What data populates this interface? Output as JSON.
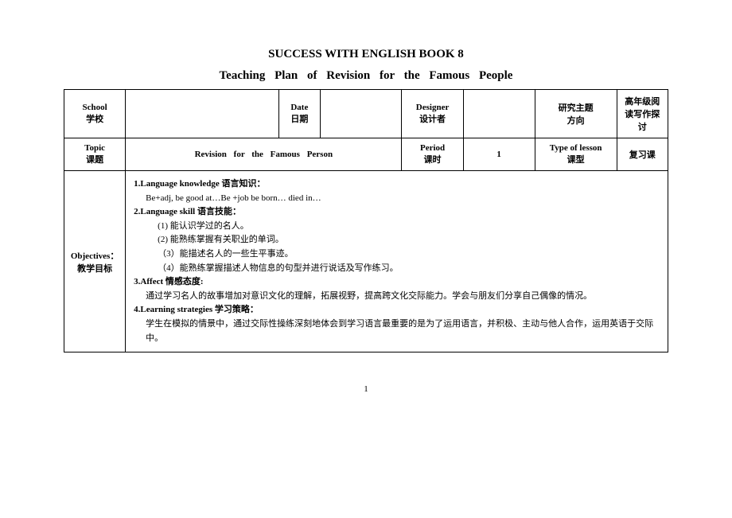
{
  "title1": "SUCCESS WITH ENGLISH BOOK 8",
  "title2": "Teaching   Plan   of   Revision   for   the   Famous   People",
  "row1": {
    "school_en": "School",
    "school_zh": "学校",
    "date_en": "Date",
    "date_zh": "日期",
    "designer_en": "Designer",
    "designer_zh": "设计者",
    "research_zh1": "研究主题",
    "research_zh2": "方向",
    "grade_zh1": "高年级阅",
    "grade_zh2": "读写作探",
    "grade_zh3": "讨"
  },
  "row2": {
    "topic_en": "Topic",
    "topic_zh": "课题",
    "topic_val": "Revision   for   the   Famous   Person",
    "period_en": "Period",
    "period_zh": "课时",
    "period_val": "1",
    "type_en": "Type of lesson",
    "type_zh": "课型",
    "type_val": "复习课"
  },
  "obj": {
    "label_en": "Objectives：",
    "label_zh": "教学目标",
    "k1": "1.Language knowledge 语言知识：",
    "k1_1": "Be+adj, be good at…Be +job    be born… died in…",
    "k2": "2.Language skill 语言技能：",
    "k2_1": "(1)  能认识学过的名人。",
    "k2_2": "(2)  能熟练掌握有关职业的单词。",
    "k2_3": "（3）能描述名人的一些生平事迹。",
    "k2_4": "（4）能熟练掌握描述人物信息的句型并进行说话及写作练习。",
    "k3": "3.Affect  情感态度:",
    "k3_1": "通过学习名人的故事增加对意识文化的理解，拓展视野，提高跨文化交际能力。学会与朋友们分享自己偶像的情况。",
    "k4": "4.Learning strategies 学习策略：",
    "k4_1": "学生在模拟的情景中，通过交际性操练深刻地体会到学习语言最重要的是为了运用语言，并积极、主动与他人合作，运用英语于交际中。"
  },
  "page": "1"
}
